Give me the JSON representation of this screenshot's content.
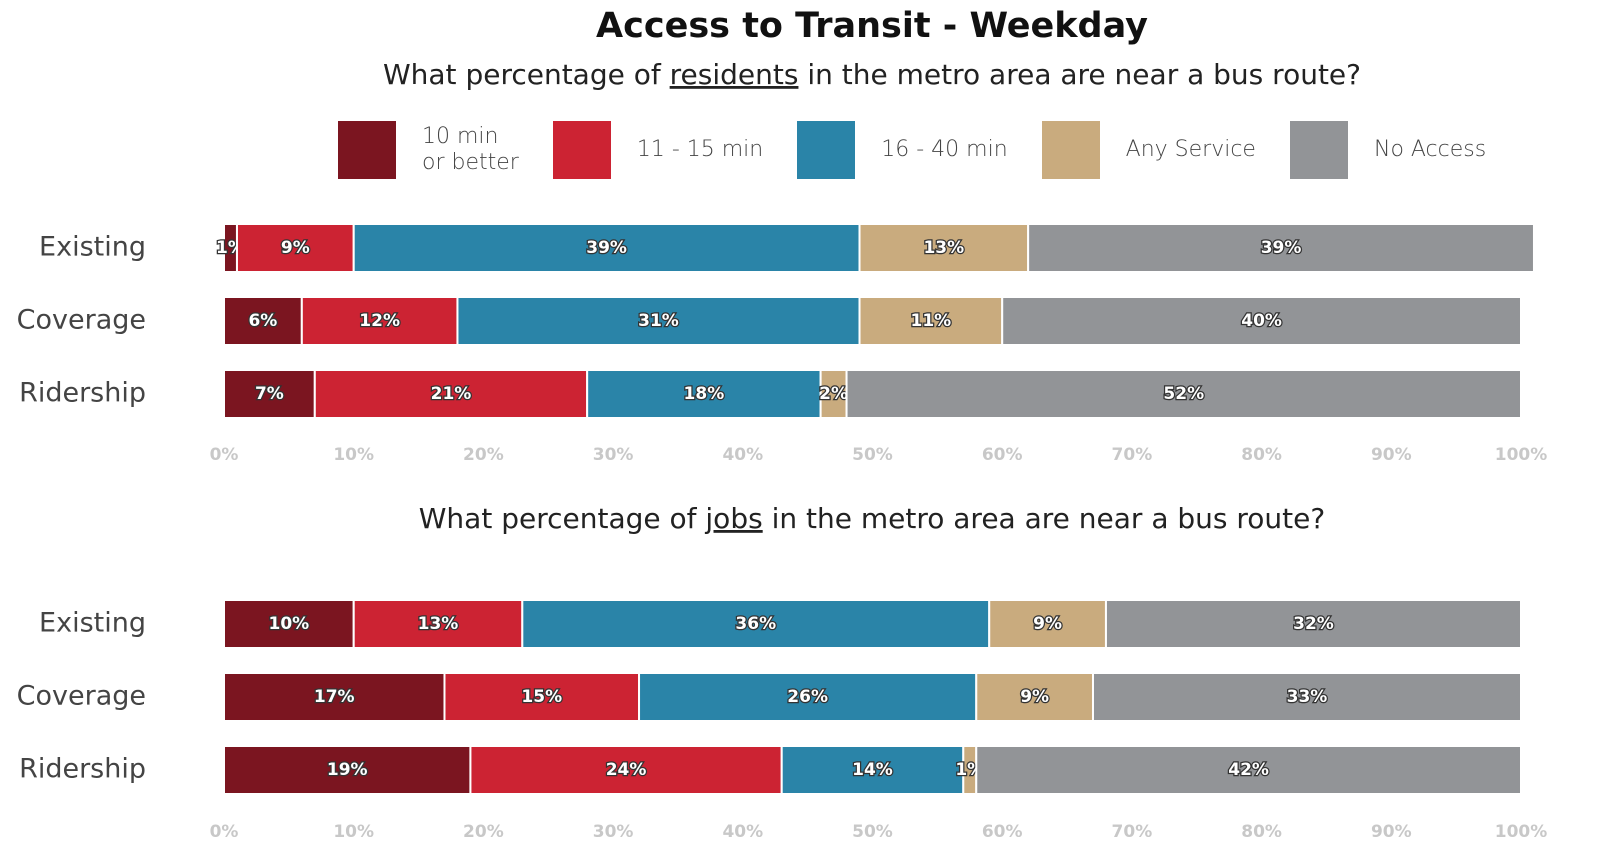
{
  "chart_data": [
    {
      "type": "bar",
      "orientation": "horizontal",
      "stacked": true,
      "title": "Access to Transit - Weekday",
      "subtitle": [
        "What percentage of ",
        "residents",
        " in the metro area are near a bus route?"
      ],
      "underline": 1,
      "legend": true,
      "categories": [
        "Existing",
        "Coverage",
        "Ridership"
      ],
      "series": [
        {
          "name": "10 min\nor better",
          "color": "#7b1520",
          "values": [
            1,
            6,
            7
          ],
          "value_labels": [
            "1%",
            "6%",
            "7%"
          ]
        },
        {
          "name": "11 - 15 min",
          "color": "#cc2333",
          "values": [
            9,
            12,
            21
          ],
          "value_labels": [
            "9%",
            "12%",
            "21%"
          ]
        },
        {
          "name": "16 - 40 min",
          "color": "#2a84a8",
          "values": [
            39,
            31,
            18
          ],
          "value_labels": [
            "39%",
            "31%",
            "18%"
          ]
        },
        {
          "name": "Any Service",
          "color": "#c9ab7e",
          "values": [
            13,
            11,
            2
          ],
          "value_labels": [
            "13%",
            "11%",
            "2%"
          ]
        },
        {
          "name": "No Access",
          "color": "#929497",
          "values": [
            39,
            40,
            52
          ],
          "value_labels": [
            "39%",
            "40%",
            "52%"
          ]
        }
      ],
      "xlim": [
        0,
        100
      ],
      "xticks": [
        {
          "value": 0,
          "label": "0%"
        },
        {
          "value": 10,
          "label": "10%"
        },
        {
          "value": 20,
          "label": "20%"
        },
        {
          "value": 30,
          "label": "30%"
        },
        {
          "value": 40,
          "label": "40%"
        },
        {
          "value": 50,
          "label": "50%"
        },
        {
          "value": 60,
          "label": "60%"
        },
        {
          "value": 70,
          "label": "70%"
        },
        {
          "value": 80,
          "label": "80%"
        },
        {
          "value": 90,
          "label": "90%"
        },
        {
          "value": 100,
          "label": "100%"
        }
      ]
    },
    {
      "type": "bar",
      "orientation": "horizontal",
      "stacked": true,
      "subtitle": [
        "What percentage of ",
        "jobs",
        " in the metro area are near a bus route?"
      ],
      "underline": 1,
      "legend": false,
      "categories": [
        "Existing",
        "Coverage",
        "Ridership"
      ],
      "series": [
        {
          "color": "#7b1520",
          "values": [
            10,
            17,
            19
          ],
          "value_labels": [
            "10%",
            "17%",
            "19%"
          ]
        },
        {
          "color": "#cc2333",
          "values": [
            13,
            15,
            24
          ],
          "value_labels": [
            "13%",
            "15%",
            "24%"
          ]
        },
        {
          "color": "#2a84a8",
          "values": [
            36,
            26,
            14
          ],
          "value_labels": [
            "36%",
            "26%",
            "14%"
          ]
        },
        {
          "color": "#c9ab7e",
          "values": [
            9,
            9,
            1
          ],
          "value_labels": [
            "9%",
            "9%",
            "1%"
          ]
        },
        {
          "color": "#929497",
          "values": [
            32,
            33,
            42
          ],
          "value_labels": [
            "32%",
            "33%",
            "42%"
          ]
        }
      ],
      "xlim": [
        0,
        100
      ],
      "xticks": [
        {
          "value": 0,
          "label": "0%"
        },
        {
          "value": 10,
          "label": "10%"
        },
        {
          "value": 20,
          "label": "20%"
        },
        {
          "value": 30,
          "label": "30%"
        },
        {
          "value": 40,
          "label": "40%"
        },
        {
          "value": 50,
          "label": "50%"
        },
        {
          "value": 60,
          "label": "60%"
        },
        {
          "value": 70,
          "label": "70%"
        },
        {
          "value": 80,
          "label": "80%"
        },
        {
          "value": 90,
          "label": "90%"
        },
        {
          "value": 100,
          "label": "100%"
        }
      ]
    }
  ]
}
